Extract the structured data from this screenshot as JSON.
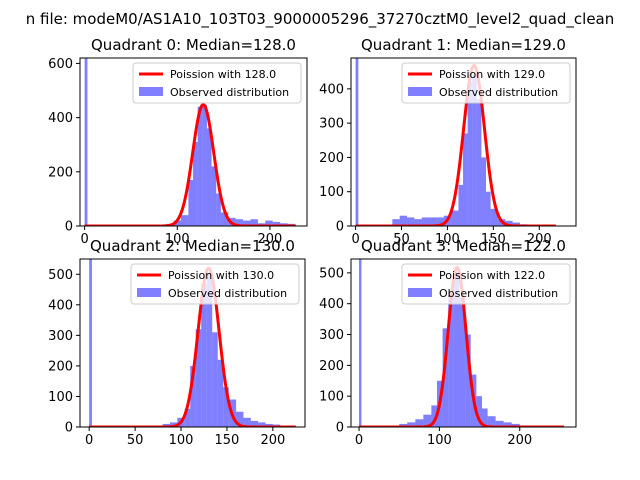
{
  "figure": {
    "suptitle": "n file: modeM0/AS1A10_103T03_9000005296_37270cztM0_level2_quad_clean"
  },
  "colors": {
    "hist": "#0000ff",
    "poisson": "#ff0000"
  },
  "chart_data": [
    {
      "type": "bar",
      "title": "Quadrant 0: Median=128.0",
      "xlim": [
        -5,
        240
      ],
      "ylim": [
        0,
        620
      ],
      "xticks": [
        "0",
        "100",
        "200"
      ],
      "yticks": [
        "0",
        "200",
        "400",
        "600"
      ],
      "legend": {
        "placement": "top-right",
        "entries": [
          "Poission with 128.0",
          "Observed distribution"
        ]
      },
      "poisson_mean": 128.0,
      "poisson_peak": 448,
      "hist_bins": [
        [
          0,
          3,
          800
        ],
        [
          80,
          88,
          5
        ],
        [
          88,
          96,
          8
        ],
        [
          96,
          104,
          20
        ],
        [
          104,
          112,
          40
        ],
        [
          112,
          117,
          170
        ],
        [
          117,
          122,
          310
        ],
        [
          122,
          127,
          440
        ],
        [
          127,
          132,
          448
        ],
        [
          132,
          137,
          360
        ],
        [
          137,
          142,
          220
        ],
        [
          142,
          147,
          120
        ],
        [
          147,
          155,
          50
        ],
        [
          155,
          163,
          30
        ],
        [
          163,
          171,
          25
        ],
        [
          171,
          179,
          20
        ],
        [
          179,
          187,
          25
        ],
        [
          187,
          195,
          10
        ],
        [
          195,
          203,
          20
        ],
        [
          203,
          211,
          15
        ],
        [
          211,
          219,
          10
        ],
        [
          219,
          227,
          8
        ]
      ],
      "poisson_x_range": [
        0,
        228
      ]
    },
    {
      "type": "bar",
      "title": "Quadrant 1: Median=129.0",
      "xlim": [
        -5,
        240
      ],
      "ylim": [
        0,
        490
      ],
      "xticks": [
        "0",
        "50",
        "100",
        "150",
        "200"
      ],
      "yticks": [
        "0",
        "100",
        "200",
        "300",
        "400"
      ],
      "legend": {
        "placement": "top-right",
        "entries": [
          "Poission with 129.0",
          "Observed distribution"
        ]
      },
      "poisson_mean": 129.0,
      "poisson_peak": 468,
      "hist_bins": [
        [
          0,
          3,
          700
        ],
        [
          40,
          48,
          20
        ],
        [
          48,
          56,
          30
        ],
        [
          56,
          64,
          25
        ],
        [
          64,
          72,
          20
        ],
        [
          72,
          80,
          25
        ],
        [
          80,
          88,
          25
        ],
        [
          88,
          96,
          25
        ],
        [
          96,
          104,
          30
        ],
        [
          104,
          112,
          45
        ],
        [
          112,
          117,
          120
        ],
        [
          117,
          122,
          270
        ],
        [
          122,
          127,
          420
        ],
        [
          127,
          132,
          440
        ],
        [
          132,
          137,
          370
        ],
        [
          137,
          142,
          200
        ],
        [
          142,
          147,
          100
        ],
        [
          147,
          155,
          50
        ],
        [
          155,
          163,
          20
        ],
        [
          163,
          171,
          15
        ],
        [
          171,
          179,
          10
        ],
        [
          179,
          187,
          5
        ]
      ],
      "poisson_x_range": [
        0,
        218
      ]
    },
    {
      "type": "bar",
      "title": "Quadrant 2: Median=130.0",
      "xlim": [
        -10,
        235
      ],
      "ylim": [
        0,
        550
      ],
      "xticks": [
        "0",
        "50",
        "100",
        "150",
        "200"
      ],
      "yticks": [
        "0",
        "100",
        "200",
        "300",
        "400",
        "500"
      ],
      "legend": {
        "placement": "top-right",
        "entries": [
          "Poission with 130.0",
          "Observed distribution"
        ]
      },
      "poisson_mean": 130.0,
      "poisson_peak": 520,
      "hist_bins": [
        [
          0,
          3,
          800
        ],
        [
          72,
          80,
          5
        ],
        [
          80,
          88,
          10
        ],
        [
          88,
          96,
          15
        ],
        [
          96,
          104,
          30
        ],
        [
          104,
          110,
          60
        ],
        [
          110,
          116,
          200
        ],
        [
          116,
          122,
          320
        ],
        [
          122,
          128,
          470
        ],
        [
          128,
          134,
          500
        ],
        [
          134,
          140,
          310
        ],
        [
          140,
          146,
          220
        ],
        [
          146,
          152,
          130
        ],
        [
          152,
          160,
          90
        ],
        [
          160,
          168,
          50
        ],
        [
          168,
          176,
          30
        ],
        [
          176,
          184,
          20
        ],
        [
          184,
          192,
          15
        ],
        [
          192,
          200,
          10
        ],
        [
          200,
          208,
          8
        ]
      ],
      "poisson_x_range": [
        0,
        225
      ]
    },
    {
      "type": "bar",
      "title": "Quadrant 3: Median=122.0",
      "xlim": [
        -10,
        270
      ],
      "ylim": [
        0,
        545
      ],
      "xticks": [
        "0",
        "100",
        "200"
      ],
      "yticks": [
        "0",
        "100",
        "200",
        "300",
        "400",
        "500"
      ],
      "legend": {
        "placement": "top-right",
        "entries": [
          "Poission with 122.0",
          "Observed distribution"
        ]
      },
      "poisson_mean": 122.0,
      "poisson_peak": 518,
      "hist_bins": [
        [
          0,
          3,
          800
        ],
        [
          40,
          50,
          5
        ],
        [
          50,
          60,
          10
        ],
        [
          60,
          70,
          15
        ],
        [
          70,
          80,
          25
        ],
        [
          80,
          90,
          40
        ],
        [
          90,
          97,
          70
        ],
        [
          97,
          104,
          150
        ],
        [
          104,
          111,
          320
        ],
        [
          111,
          118,
          440
        ],
        [
          118,
          125,
          500
        ],
        [
          125,
          132,
          420
        ],
        [
          132,
          139,
          300
        ],
        [
          139,
          146,
          170
        ],
        [
          146,
          153,
          100
        ],
        [
          153,
          160,
          60
        ],
        [
          160,
          170,
          35
        ],
        [
          170,
          180,
          20
        ],
        [
          180,
          190,
          15
        ],
        [
          190,
          200,
          10
        ],
        [
          200,
          212,
          5
        ]
      ],
      "poisson_x_range": [
        0,
        255
      ]
    }
  ]
}
